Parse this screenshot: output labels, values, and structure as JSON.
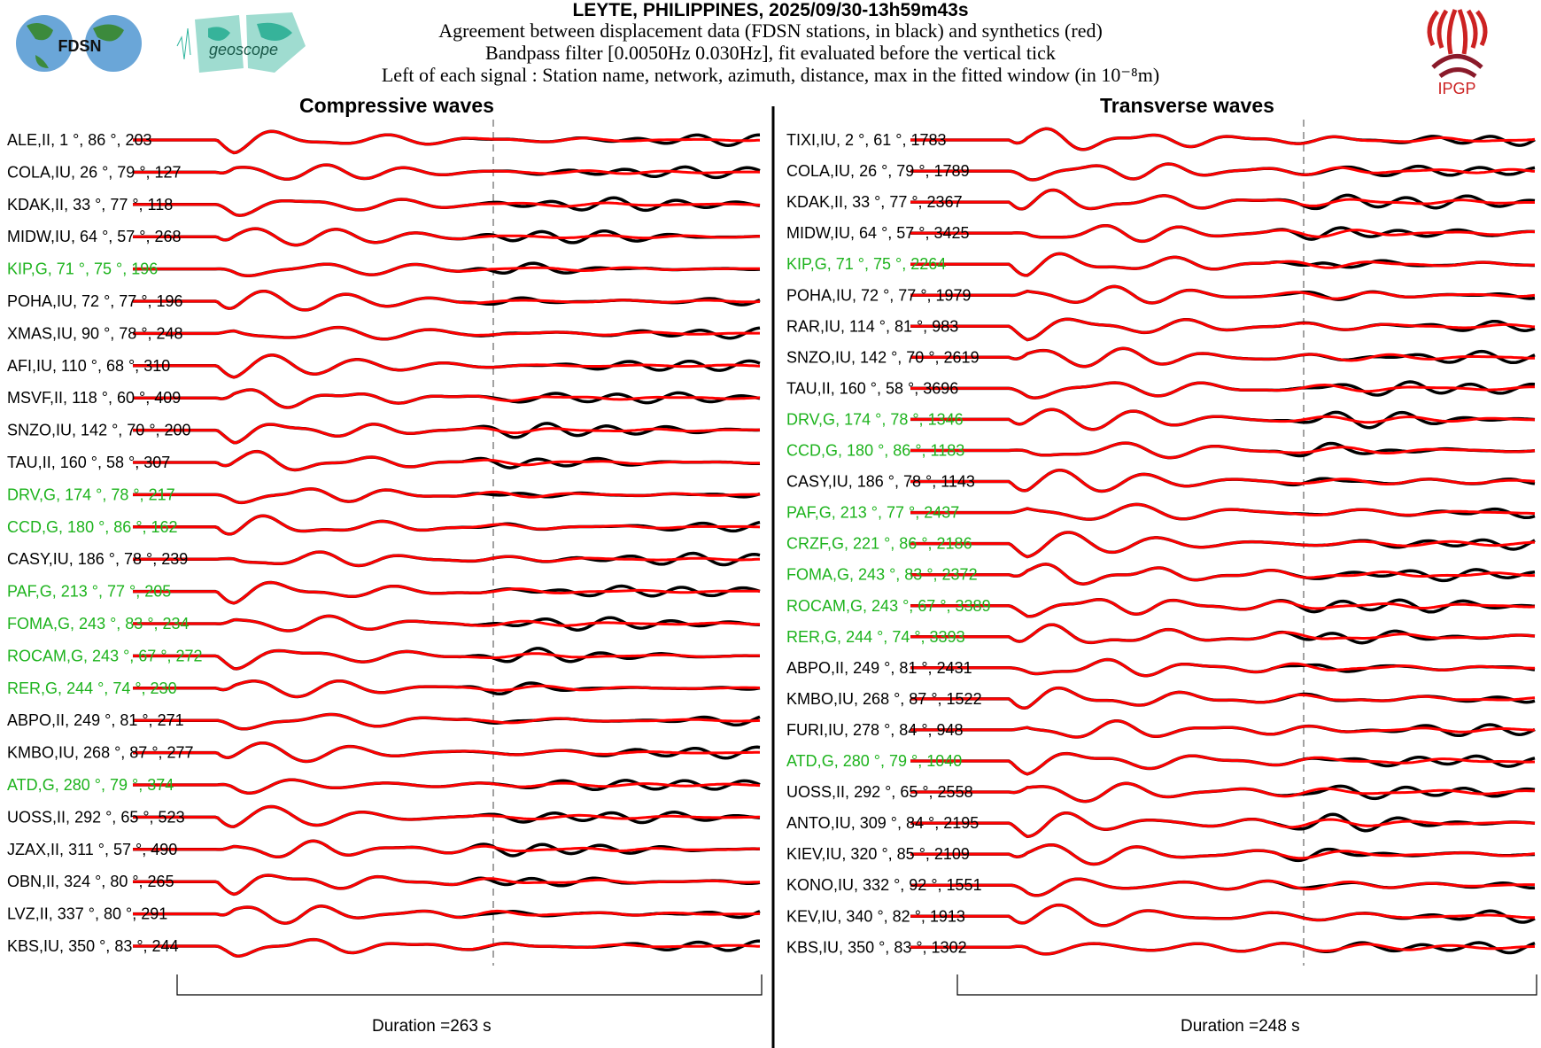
{
  "header": {
    "title": "LEYTE, PHILIPPINES, 2025/09/30-13h59m43s",
    "line1": "Agreement between displacement data (FDSN stations, in black) and synthetics (red)",
    "line2": "Bandpass filter [0.0050Hz 0.030Hz], fit evaluated before the vertical tick",
    "line3": "Left of each signal : Station name, network, azimuth, distance, max in the fitted window (in 10⁻⁸m)"
  },
  "logos": {
    "fdsn": "FDSN",
    "geoscope": "geoscope",
    "ipgp": "IPGP"
  },
  "colors": {
    "data": "#000000",
    "synthetic": "#ff0000",
    "geoscope_label": "#11bb11",
    "ipgp": "#cc2222"
  },
  "chart_data": [
    {
      "type": "line",
      "title": "Compressive waves",
      "xlabel": "Duration =263 s",
      "series_legend": {
        "data": "black",
        "synthetics": "red"
      },
      "rows": [
        {
          "station": "ALE",
          "network": "II",
          "azimuth": 1,
          "distance": 86,
          "max": 203,
          "geoscope": false
        },
        {
          "station": "COLA",
          "network": "IU",
          "azimuth": 26,
          "distance": 79,
          "max": 127,
          "geoscope": false
        },
        {
          "station": "KDAK",
          "network": "II",
          "azimuth": 33,
          "distance": 77,
          "max": 118,
          "geoscope": false
        },
        {
          "station": "MIDW",
          "network": "IU",
          "azimuth": 64,
          "distance": 57,
          "max": 268,
          "geoscope": false
        },
        {
          "station": "KIP",
          "network": "G",
          "azimuth": 71,
          "distance": 75,
          "max": 196,
          "geoscope": true
        },
        {
          "station": "POHA",
          "network": "IU",
          "azimuth": 72,
          "distance": 77,
          "max": 196,
          "geoscope": false
        },
        {
          "station": "XMAS",
          "network": "IU",
          "azimuth": 90,
          "distance": 78,
          "max": 248,
          "geoscope": false
        },
        {
          "station": "AFI",
          "network": "IU",
          "azimuth": 110,
          "distance": 68,
          "max": 310,
          "geoscope": false
        },
        {
          "station": "MSVF",
          "network": "II",
          "azimuth": 118,
          "distance": 60,
          "max": 409,
          "geoscope": false
        },
        {
          "station": "SNZO",
          "network": "IU",
          "azimuth": 142,
          "distance": 70,
          "max": 200,
          "geoscope": false
        },
        {
          "station": "TAU",
          "network": "II",
          "azimuth": 160,
          "distance": 58,
          "max": 307,
          "geoscope": false
        },
        {
          "station": "DRV",
          "network": "G",
          "azimuth": 174,
          "distance": 78,
          "max": 217,
          "geoscope": true
        },
        {
          "station": "CCD",
          "network": "G",
          "azimuth": 180,
          "distance": 86,
          "max": 162,
          "geoscope": true
        },
        {
          "station": "CASY",
          "network": "IU",
          "azimuth": 186,
          "distance": 78,
          "max": 239,
          "geoscope": false
        },
        {
          "station": "PAF",
          "network": "G",
          "azimuth": 213,
          "distance": 77,
          "max": 205,
          "geoscope": true
        },
        {
          "station": "FOMA",
          "network": "G",
          "azimuth": 243,
          "distance": 83,
          "max": 234,
          "geoscope": true
        },
        {
          "station": "ROCAM",
          "network": "G",
          "azimuth": 243,
          "distance": 67,
          "max": 272,
          "geoscope": true
        },
        {
          "station": "RER",
          "network": "G",
          "azimuth": 244,
          "distance": 74,
          "max": 230,
          "geoscope": true
        },
        {
          "station": "ABPO",
          "network": "II",
          "azimuth": 249,
          "distance": 81,
          "max": 271,
          "geoscope": false
        },
        {
          "station": "KMBO",
          "network": "IU",
          "azimuth": 268,
          "distance": 87,
          "max": 277,
          "geoscope": false
        },
        {
          "station": "ATD",
          "network": "G",
          "azimuth": 280,
          "distance": 79,
          "max": 374,
          "geoscope": true
        },
        {
          "station": "UOSS",
          "network": "II",
          "azimuth": 292,
          "distance": 65,
          "max": 523,
          "geoscope": false
        },
        {
          "station": "JZAX",
          "network": "II",
          "azimuth": 311,
          "distance": 57,
          "max": 490,
          "geoscope": false
        },
        {
          "station": "OBN",
          "network": "II",
          "azimuth": 324,
          "distance": 80,
          "max": 265,
          "geoscope": false
        },
        {
          "station": "LVZ",
          "network": "II",
          "azimuth": 337,
          "distance": 80,
          "max": 291,
          "geoscope": false
        },
        {
          "station": "KBS",
          "network": "IU",
          "azimuth": 350,
          "distance": 83,
          "max": 244,
          "geoscope": false
        }
      ]
    },
    {
      "type": "line",
      "title": "Transverse waves",
      "xlabel": "Duration =248 s",
      "series_legend": {
        "data": "black",
        "synthetics": "red"
      },
      "rows": [
        {
          "station": "TIXI",
          "network": "IU",
          "azimuth": 2,
          "distance": 61,
          "max": 1783,
          "geoscope": false
        },
        {
          "station": "COLA",
          "network": "IU",
          "azimuth": 26,
          "distance": 79,
          "max": 1789,
          "geoscope": false
        },
        {
          "station": "KDAK",
          "network": "II",
          "azimuth": 33,
          "distance": 77,
          "max": 2367,
          "geoscope": false
        },
        {
          "station": "MIDW",
          "network": "IU",
          "azimuth": 64,
          "distance": 57,
          "max": 3425,
          "geoscope": false
        },
        {
          "station": "KIP",
          "network": "G",
          "azimuth": 71,
          "distance": 75,
          "max": 2264,
          "geoscope": true
        },
        {
          "station": "POHA",
          "network": "IU",
          "azimuth": 72,
          "distance": 77,
          "max": 1979,
          "geoscope": false
        },
        {
          "station": "RAR",
          "network": "IU",
          "azimuth": 114,
          "distance": 81,
          "max": 983,
          "geoscope": false
        },
        {
          "station": "SNZO",
          "network": "IU",
          "azimuth": 142,
          "distance": 70,
          "max": 2619,
          "geoscope": false
        },
        {
          "station": "TAU",
          "network": "II",
          "azimuth": 160,
          "distance": 58,
          "max": 3696,
          "geoscope": false
        },
        {
          "station": "DRV",
          "network": "G",
          "azimuth": 174,
          "distance": 78,
          "max": 1346,
          "geoscope": true
        },
        {
          "station": "CCD",
          "network": "G",
          "azimuth": 180,
          "distance": 86,
          "max": 1183,
          "geoscope": true
        },
        {
          "station": "CASY",
          "network": "IU",
          "azimuth": 186,
          "distance": 78,
          "max": 1143,
          "geoscope": false
        },
        {
          "station": "PAF",
          "network": "G",
          "azimuth": 213,
          "distance": 77,
          "max": 2437,
          "geoscope": true
        },
        {
          "station": "CRZF",
          "network": "G",
          "azimuth": 221,
          "distance": 86,
          "max": 2186,
          "geoscope": true
        },
        {
          "station": "FOMA",
          "network": "G",
          "azimuth": 243,
          "distance": 83,
          "max": 2372,
          "geoscope": true
        },
        {
          "station": "ROCAM",
          "network": "G",
          "azimuth": 243,
          "distance": 67,
          "max": 3389,
          "geoscope": true
        },
        {
          "station": "RER",
          "network": "G",
          "azimuth": 244,
          "distance": 74,
          "max": 3393,
          "geoscope": true
        },
        {
          "station": "ABPO",
          "network": "II",
          "azimuth": 249,
          "distance": 81,
          "max": 2431,
          "geoscope": false
        },
        {
          "station": "KMBO",
          "network": "IU",
          "azimuth": 268,
          "distance": 87,
          "max": 1522,
          "geoscope": false
        },
        {
          "station": "FURI",
          "network": "IU",
          "azimuth": 278,
          "distance": 84,
          "max": 948,
          "geoscope": false
        },
        {
          "station": "ATD",
          "network": "G",
          "azimuth": 280,
          "distance": 79,
          "max": 1040,
          "geoscope": true
        },
        {
          "station": "UOSS",
          "network": "II",
          "azimuth": 292,
          "distance": 65,
          "max": 2558,
          "geoscope": false
        },
        {
          "station": "ANTO",
          "network": "IU",
          "azimuth": 309,
          "distance": 84,
          "max": 2195,
          "geoscope": false
        },
        {
          "station": "KIEV",
          "network": "IU",
          "azimuth": 320,
          "distance": 85,
          "max": 2109,
          "geoscope": false
        },
        {
          "station": "KONO",
          "network": "IU",
          "azimuth": 332,
          "distance": 92,
          "max": 1551,
          "geoscope": false
        },
        {
          "station": "KEV",
          "network": "IU",
          "azimuth": 340,
          "distance": 82,
          "max": 1913,
          "geoscope": false
        },
        {
          "station": "KBS",
          "network": "IU",
          "azimuth": 350,
          "distance": 83,
          "max": 1302,
          "geoscope": false
        }
      ]
    }
  ]
}
